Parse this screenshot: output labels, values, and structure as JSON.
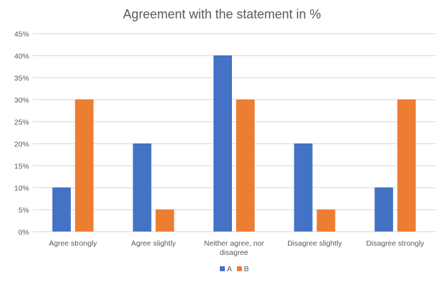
{
  "chart_data": {
    "type": "bar",
    "title": "Agreement with the statement in %",
    "categories": [
      [
        "Agree strongly"
      ],
      [
        "Agree slightly"
      ],
      [
        "Neither agree, nor",
        "disagree"
      ],
      [
        "Disagree slightly"
      ],
      [
        "Disagree strongly"
      ]
    ],
    "series": [
      {
        "name": "A",
        "color": "#4472C4",
        "values": [
          10,
          20,
          40,
          20,
          10
        ]
      },
      {
        "name": "B",
        "color": "#ED7D31",
        "values": [
          30,
          5,
          30,
          5,
          30
        ]
      }
    ],
    "ylim": [
      0,
      45
    ],
    "yticks": [
      0,
      5,
      10,
      15,
      20,
      25,
      30,
      35,
      40,
      45
    ],
    "ytick_suffix": "%",
    "grid": true,
    "legend": "bottom",
    "xlabel": "",
    "ylabel": ""
  }
}
